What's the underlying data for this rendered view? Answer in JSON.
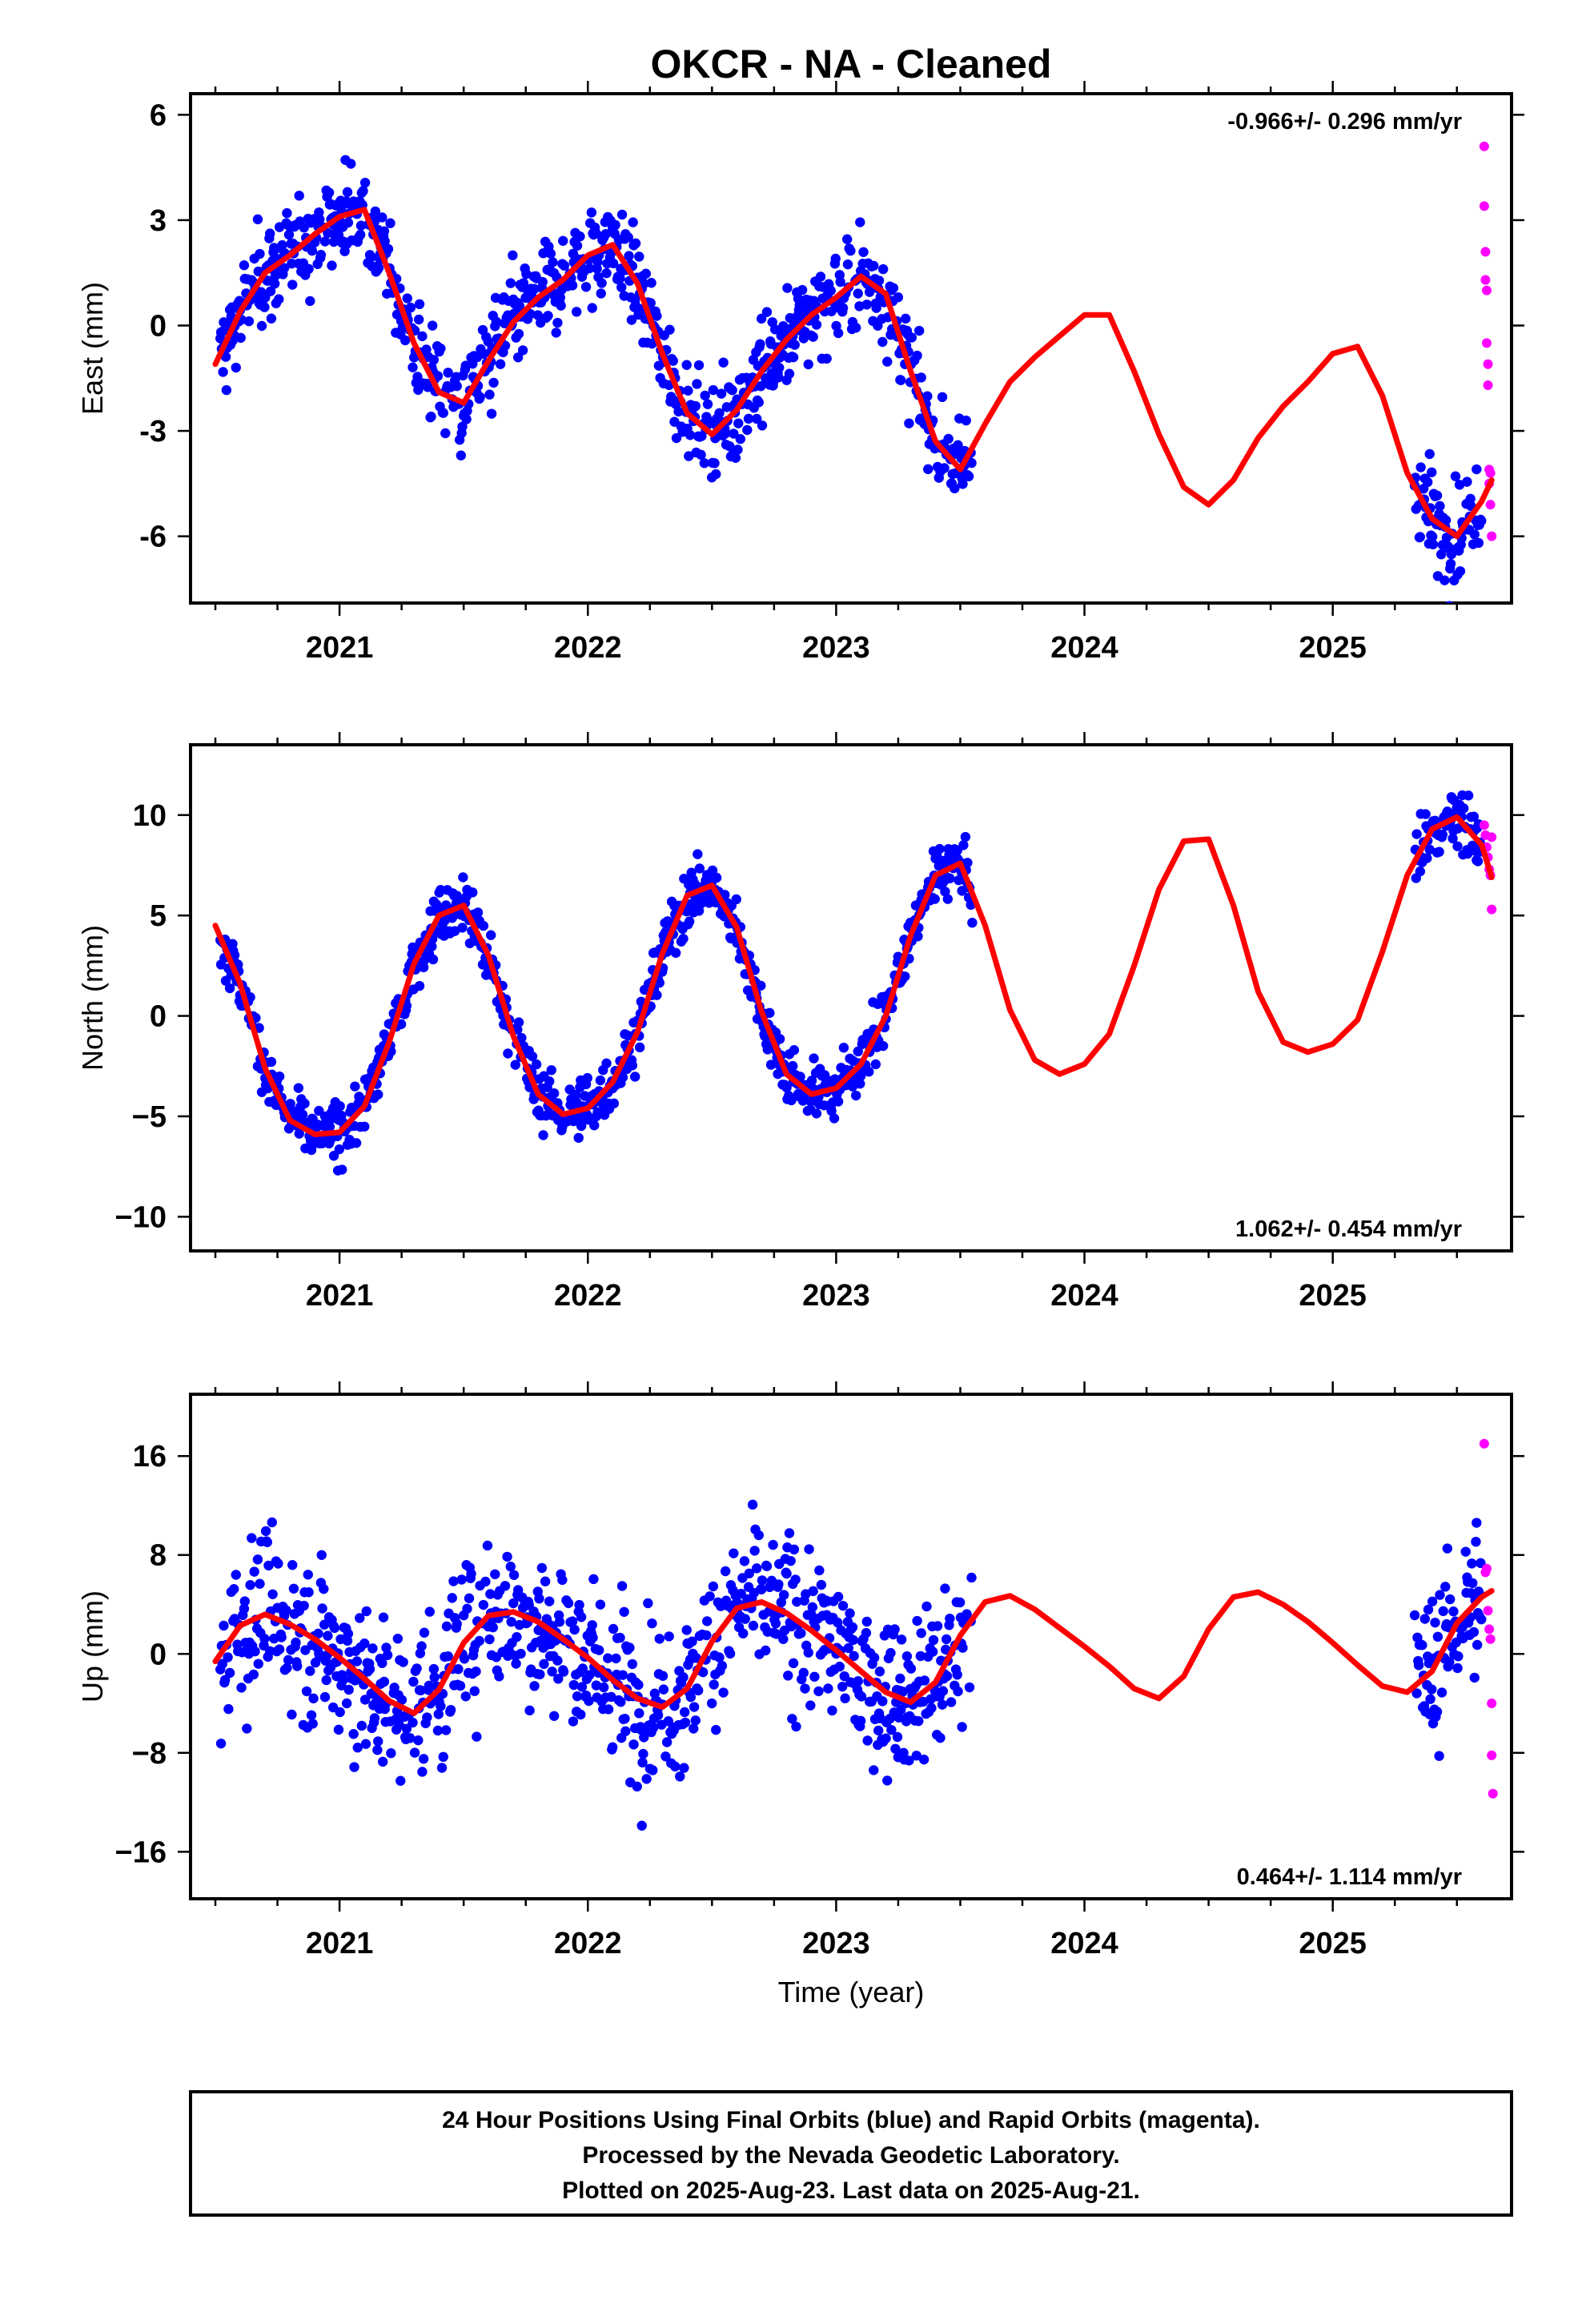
{
  "title": "OKCR  - NA - Cleaned",
  "xlabel": "Time (year)",
  "footer": {
    "line1": "24 Hour Positions Using Final Orbits (blue) and Rapid Orbits (magenta).",
    "line2": "Processed by the Nevada Geodetic Laboratory.",
    "line3": "Plotted on 2025-Aug-23. Last data on 2025-Aug-21."
  },
  "colors": {
    "final": "#0000ff",
    "rapid": "#ff00ff",
    "model": "#ff0000",
    "frame": "#000000"
  },
  "chart_data": [
    {
      "type": "scatter",
      "ylabel": "East (mm)",
      "rate": "-0.966+/- 0.296 mm/yr",
      "rate_position": "top-right",
      "xlim": [
        2020.4,
        2025.72
      ],
      "ylim": [
        -7.9,
        6.6
      ],
      "xticks": [
        2021,
        2022,
        2023,
        2024,
        2025
      ],
      "xtick_labels": [
        "2021",
        "2022",
        "2023",
        "2024",
        "2025"
      ],
      "yticks": [
        -6,
        -3,
        0,
        3,
        6
      ],
      "ytick_labels": [
        "-6",
        "-3",
        "0",
        "3",
        "6"
      ],
      "model": {
        "name": "",
        "x": [
          2020.5,
          2020.6,
          2020.7,
          2020.8,
          2020.9,
          2021.0,
          2021.1,
          2021.2,
          2021.3,
          2021.4,
          2021.5,
          2021.6,
          2021.7,
          2021.8,
          2021.9,
          2022.0,
          2022.1,
          2022.2,
          2022.3,
          2022.4,
          2022.5,
          2022.6,
          2022.7,
          2022.8,
          2022.9,
          2023.0,
          2023.1,
          2023.2,
          2023.3,
          2023.4,
          2023.5,
          2023.6,
          2023.7,
          2023.8,
          2023.9,
          2024.0,
          2024.1,
          2024.2,
          2024.3,
          2024.4,
          2024.5,
          2024.6,
          2024.7,
          2024.8,
          2024.9,
          2025.0,
          2025.1,
          2025.2,
          2025.3,
          2025.4,
          2025.5,
          2025.6,
          2025.64
        ],
        "y": [
          -1.1,
          0.4,
          1.5,
          2.0,
          2.6,
          3.1,
          3.3,
          1.5,
          -0.5,
          -1.9,
          -2.2,
          -1.0,
          0.1,
          0.8,
          1.3,
          2.0,
          2.3,
          1.2,
          -0.8,
          -2.5,
          -3.1,
          -2.4,
          -1.3,
          -0.4,
          0.3,
          0.8,
          1.4,
          0.9,
          -1.3,
          -3.3,
          -4.1,
          -2.8,
          -1.6,
          -0.9,
          -0.3,
          0.3,
          0.3,
          -1.3,
          -3.1,
          -4.6,
          -5.1,
          -4.4,
          -3.2,
          -2.3,
          -1.6,
          -0.8,
          -0.6,
          -2.0,
          -4.2,
          -5.5,
          -6.0,
          -5.0,
          -4.4
        ]
      },
      "rapid": {
        "name": "",
        "x": [
          2025.61,
          2025.61,
          2025.615,
          2025.615,
          2025.62,
          2025.62,
          2025.625,
          2025.625,
          2025.63,
          2025.63,
          2025.635,
          2025.635,
          2025.64
        ],
        "y": [
          5.1,
          3.4,
          2.1,
          1.3,
          1.0,
          -0.5,
          -1.1,
          -1.7,
          -4.1,
          -4.5,
          -4.2,
          -5.1,
          -6.0
        ]
      }
    },
    {
      "type": "scatter",
      "ylabel": "North (mm)",
      "rate": "1.062+/- 0.454 mm/yr",
      "rate_position": "bottom-right",
      "xlim": [
        2020.4,
        2025.72
      ],
      "ylim": [
        -11.7,
        13.5
      ],
      "xticks": [
        2021,
        2022,
        2023,
        2024,
        2025
      ],
      "xtick_labels": [
        "2021",
        "2022",
        "2023",
        "2024",
        "2025"
      ],
      "yticks": [
        -10,
        -5,
        0,
        5,
        10
      ],
      "ytick_labels": [
        "−10",
        "−5",
        "0",
        "5",
        "10"
      ],
      "model": {
        "name": "",
        "x": [
          2020.5,
          2020.6,
          2020.7,
          2020.8,
          2020.9,
          2021.0,
          2021.1,
          2021.2,
          2021.3,
          2021.4,
          2021.5,
          2021.6,
          2021.7,
          2021.8,
          2021.9,
          2022.0,
          2022.1,
          2022.2,
          2022.3,
          2022.4,
          2022.5,
          2022.6,
          2022.7,
          2022.8,
          2022.9,
          2023.0,
          2023.1,
          2023.2,
          2023.3,
          2023.4,
          2023.5,
          2023.6,
          2023.7,
          2023.8,
          2023.9,
          2024.0,
          2024.1,
          2024.2,
          2024.3,
          2024.4,
          2024.5,
          2024.6,
          2024.7,
          2024.8,
          2024.9,
          2025.0,
          2025.1,
          2025.2,
          2025.3,
          2025.4,
          2025.5,
          2025.6,
          2025.64
        ],
        "y": [
          4.5,
          1.6,
          -2.6,
          -5.2,
          -5.9,
          -5.8,
          -4.5,
          -1.3,
          2.6,
          5.0,
          5.5,
          3.0,
          -1.0,
          -3.9,
          -4.9,
          -4.6,
          -3.3,
          -0.8,
          3.1,
          6.0,
          6.5,
          4.4,
          0.2,
          -2.9,
          -3.9,
          -3.6,
          -2.4,
          0.0,
          4.0,
          7.0,
          7.6,
          4.5,
          0.3,
          -2.2,
          -2.9,
          -2.4,
          -0.9,
          2.5,
          6.3,
          8.7,
          8.8,
          5.5,
          1.2,
          -1.3,
          -1.8,
          -1.4,
          -0.2,
          3.2,
          7.0,
          9.3,
          9.9,
          8.5,
          6.9
        ]
      },
      "rapid": {
        "name": "",
        "x": [
          2025.61,
          2025.615,
          2025.62,
          2025.625,
          2025.63,
          2025.635,
          2025.64,
          2025.64
        ],
        "y": [
          9.5,
          9.0,
          8.4,
          7.9,
          7.3,
          7.0,
          8.9,
          5.3
        ]
      }
    },
    {
      "type": "scatter",
      "ylabel": "Up (mm)",
      "rate": "0.464+/- 1.114 mm/yr",
      "rate_position": "bottom-right",
      "xlim": [
        2020.4,
        2025.72
      ],
      "ylim": [
        -19.8,
        21.0
      ],
      "xticks": [
        2021,
        2022,
        2023,
        2024,
        2025
      ],
      "xtick_labels": [
        "2021",
        "2022",
        "2023",
        "2024",
        "2025"
      ],
      "yticks": [
        -16,
        -8,
        0,
        8,
        16
      ],
      "ytick_labels": [
        "−16",
        "−8",
        "0",
        "8",
        "16"
      ],
      "model": {
        "name": "",
        "x": [
          2020.5,
          2020.6,
          2020.7,
          2020.8,
          2020.9,
          2021.0,
          2021.1,
          2021.2,
          2021.3,
          2021.4,
          2021.5,
          2021.6,
          2021.7,
          2021.8,
          2021.9,
          2022.0,
          2022.1,
          2022.2,
          2022.3,
          2022.4,
          2022.5,
          2022.6,
          2022.7,
          2022.8,
          2022.9,
          2023.0,
          2023.1,
          2023.2,
          2023.3,
          2023.4,
          2023.5,
          2023.6,
          2023.7,
          2023.8,
          2023.9,
          2024.0,
          2024.1,
          2024.2,
          2024.3,
          2024.4,
          2024.5,
          2024.6,
          2024.7,
          2024.8,
          2024.9,
          2025.0,
          2025.1,
          2025.2,
          2025.3,
          2025.4,
          2025.5,
          2025.6,
          2025.64
        ],
        "y": [
          -0.6,
          2.3,
          3.2,
          2.4,
          1.2,
          -0.3,
          -2.0,
          -3.8,
          -4.8,
          -2.9,
          0.9,
          3.1,
          3.4,
          2.6,
          1.2,
          -0.3,
          -2.1,
          -3.6,
          -4.3,
          -2.8,
          1.0,
          3.7,
          4.2,
          3.3,
          1.9,
          0.3,
          -1.4,
          -3.1,
          -3.9,
          -2.3,
          1.5,
          4.2,
          4.7,
          3.6,
          2.1,
          0.6,
          -1.0,
          -2.8,
          -3.6,
          -1.8,
          2.0,
          4.6,
          5.0,
          4.0,
          2.6,
          0.9,
          -0.9,
          -2.6,
          -3.1,
          -1.4,
          2.5,
          4.6,
          5.1
        ]
      },
      "rapid": {
        "name": "",
        "x": [
          2025.61,
          2025.615,
          2025.62,
          2025.625,
          2025.63,
          2025.635,
          2025.64,
          2025.64,
          2025.645
        ],
        "y": [
          17.0,
          6.6,
          6.9,
          3.5,
          2.0,
          1.2,
          -4.0,
          -8.2,
          -11.3
        ]
      }
    }
  ]
}
